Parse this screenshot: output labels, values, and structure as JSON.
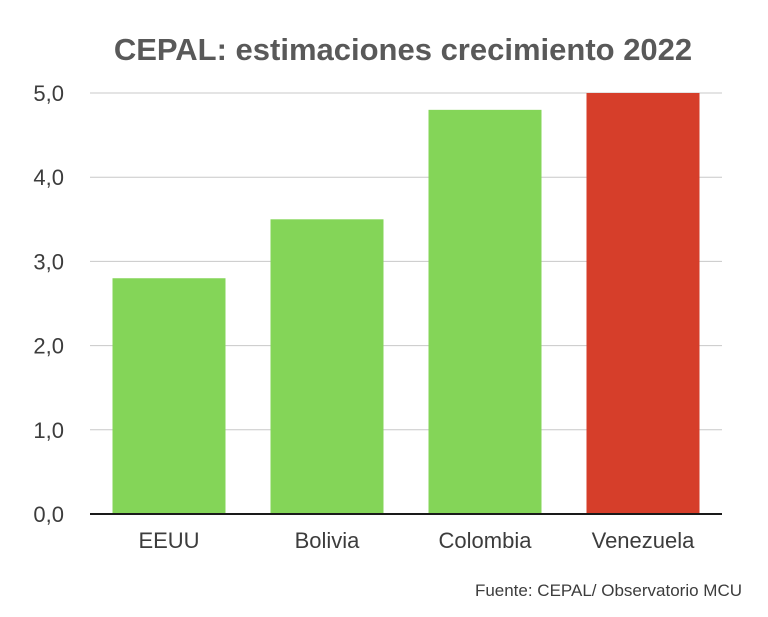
{
  "chart_data": {
    "type": "bar",
    "title": "CEPAL: estimaciones crecimiento 2022",
    "categories": [
      "EEUU",
      "Bolivia",
      "Colombia",
      "Venezuela"
    ],
    "values": [
      2.8,
      3.5,
      4.8,
      5.0
    ],
    "bar_colors": [
      "#84d558",
      "#84d558",
      "#84d558",
      "#d63e2a"
    ],
    "ylim": [
      0,
      5
    ],
    "yticks": [
      0,
      1,
      2,
      3,
      4,
      5
    ],
    "ytick_labels": [
      "0,0",
      "1,0",
      "2,0",
      "3,0",
      "4,0",
      "5,0"
    ],
    "xlabel": "",
    "ylabel": "",
    "grid": true,
    "legend": false,
    "source": "Fuente: CEPAL/ Observatorio MCU"
  }
}
